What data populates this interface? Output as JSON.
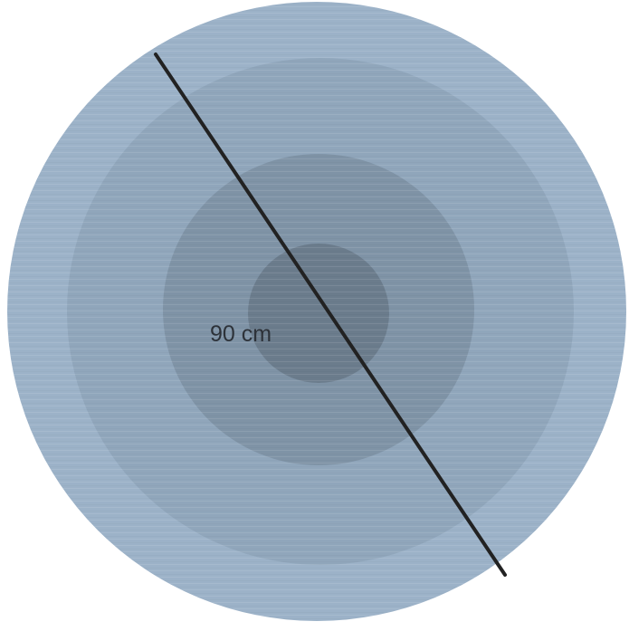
{
  "diagram": {
    "measurement_label": "90 cm",
    "colors": {
      "outer_ring": "#9cb2c8",
      "second_ring": "#90a6bb",
      "third_ring": "#7f93a6",
      "center_disc": "#6b7c8c",
      "diameter_line": "#222222",
      "text": "#2d3239"
    }
  }
}
